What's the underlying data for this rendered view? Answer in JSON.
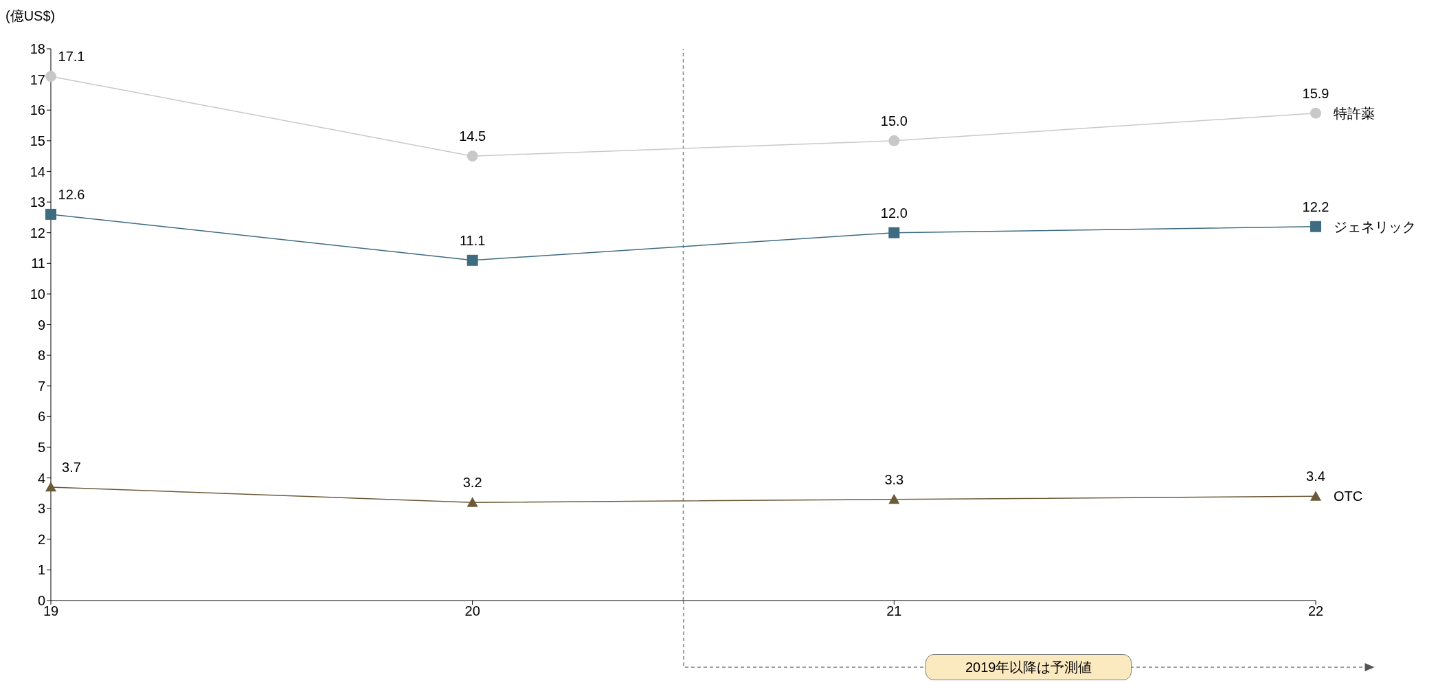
{
  "chart_data": {
    "type": "line",
    "ylabel": "(億US$)",
    "x": [
      19,
      20,
      21,
      22
    ],
    "xlim": [
      19,
      22
    ],
    "xticks": [
      19,
      20,
      21,
      22
    ],
    "ylim": [
      0,
      18
    ],
    "yticks": [
      0,
      1,
      2,
      3,
      4,
      5,
      6,
      7,
      8,
      9,
      10,
      11,
      12,
      13,
      14,
      15,
      16,
      17,
      18
    ],
    "series": [
      {
        "name": "特許薬",
        "color": "#c8c8c8",
        "marker": "circle",
        "values": [
          17.1,
          14.5,
          15.0,
          15.9
        ],
        "value_labels": [
          "17.1",
          "14.5",
          "15.0",
          "15.9"
        ]
      },
      {
        "name": "ジェネリック",
        "color": "#3d6b80",
        "marker": "square",
        "values": [
          12.6,
          11.1,
          12.0,
          12.2
        ],
        "value_labels": [
          "12.6",
          "11.1",
          "12.0",
          "12.2"
        ]
      },
      {
        "name": "OTC",
        "color": "#6b5a3a",
        "marker": "triangle",
        "values": [
          3.7,
          3.2,
          3.3,
          3.4
        ],
        "value_labels": [
          "3.7",
          "3.2",
          "3.3",
          "3.4"
        ]
      }
    ],
    "grid": false,
    "legend": false,
    "ref_lines": [
      {
        "axis": "x",
        "value": 20.5,
        "line_style": "dashed",
        "color": "#7f7f7f"
      }
    ],
    "annotations": [
      "2019年以降は予測値"
    ]
  }
}
